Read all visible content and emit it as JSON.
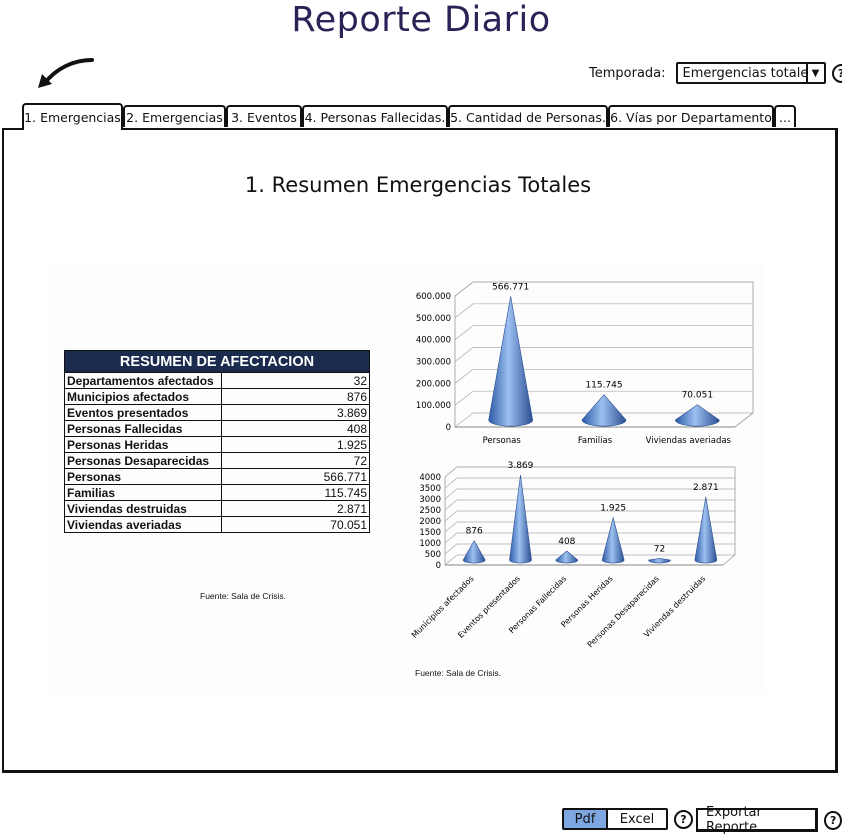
{
  "page": {
    "title": "Reporte Diario"
  },
  "filter": {
    "label": "Temporada:",
    "selected": "Emergencias totales"
  },
  "tabs": [
    {
      "label": "1. Emergencias"
    },
    {
      "label": "2. Emergencias"
    },
    {
      "label": "3. Eventos"
    },
    {
      "label": "4. Personas Fallecidas."
    },
    {
      "label": "5. Cantidad de Personas."
    },
    {
      "label": "6. Vías por Departamento"
    },
    {
      "label": "..."
    }
  ],
  "panel": {
    "title": "1. Resumen Emergencias Totales",
    "table": {
      "header": "RESUMEN DE AFECTACION",
      "rows": [
        {
          "k": "Departamentos afectados",
          "v": "32"
        },
        {
          "k": "Municipios afectados",
          "v": "876"
        },
        {
          "k": "Eventos presentados",
          "v": "3.869"
        },
        {
          "k": "Personas Fallecidas",
          "v": "408"
        },
        {
          "k": "Personas Heridas",
          "v": "1.925"
        },
        {
          "k": "Personas Desaparecidas",
          "v": "72"
        },
        {
          "k": "Personas",
          "v": "566.771"
        },
        {
          "k": "Familias",
          "v": "115.745"
        },
        {
          "k": "Viviendas destruidas",
          "v": "2.871"
        },
        {
          "k": "Viviendas averiadas",
          "v": "70.051"
        }
      ]
    },
    "source_table": "Fuente: Sala de Crisis.",
    "source_chart": "Fuente: Sala de Crisis."
  },
  "chart_data": [
    {
      "type": "bar",
      "categories": [
        "Personas",
        "Familias",
        "Viviendas averiadas"
      ],
      "values": [
        566771,
        115745,
        70051
      ],
      "data_labels": [
        "566.771",
        "115.745",
        "70.051"
      ],
      "yticks": [
        "0",
        "100.000",
        "200.000",
        "300.000",
        "400.000",
        "500.000",
        "600.000"
      ],
      "ylim": [
        0,
        600000
      ],
      "grid": true,
      "colors": {
        "cone": "#4a78c2"
      }
    },
    {
      "type": "bar",
      "categories": [
        "Municipios afectados",
        "Eventos presentados",
        "Personas Fallecidas",
        "Personas Heridas",
        "Personas Desaparecidas",
        "Viviendas destruidas"
      ],
      "values": [
        876,
        3869,
        408,
        1925,
        72,
        2871
      ],
      "data_labels": [
        "876",
        "3.869",
        "408",
        "1.925",
        "72",
        "2.871"
      ],
      "yticks": [
        "0",
        "500",
        "1000",
        "1500",
        "2000",
        "2500",
        "3000",
        "3500",
        "4000"
      ],
      "ylim": [
        0,
        4000
      ],
      "grid": true,
      "colors": {
        "cone": "#4a78c2"
      }
    }
  ],
  "footer": {
    "pdf": "Pdf",
    "excel": "Excel",
    "export": "Exportar Reporte"
  },
  "icons": {
    "help": "?",
    "dropdown": "▼"
  }
}
